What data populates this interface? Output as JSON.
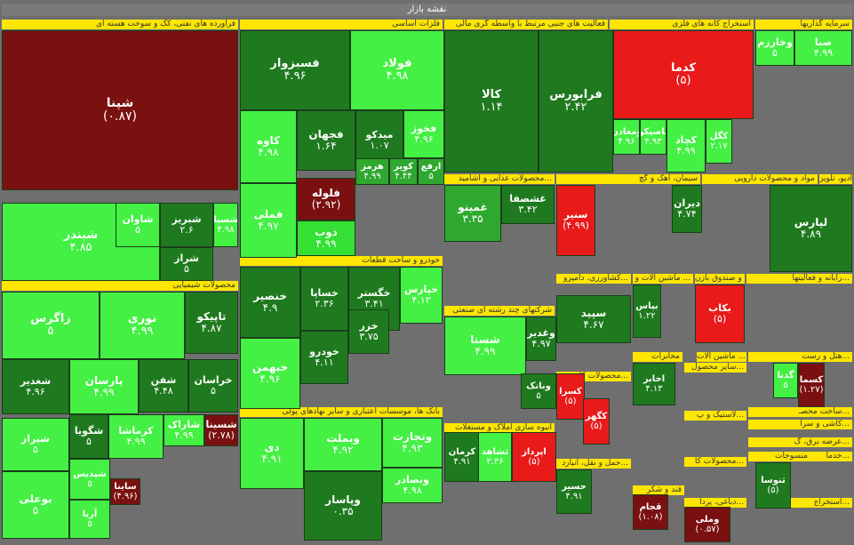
{
  "colors": {
    "dg": "#1f7a1f",
    "mg": "#2fa82f",
    "lg": "#33e033",
    "bg": "#44f044",
    "red": "#e81a1a",
    "dred": "#7a1010",
    "gray": "#6f6f6f",
    "yellow": "#ffe600"
  },
  "header": {
    "title": "نقشه بازار"
  },
  "chart_data": {
    "type": "treemap",
    "sectors": [
      {
        "id": "s1",
        "name": "فرآورده های نفتی، کک و سوخت هسته ای"
      },
      {
        "id": "s2",
        "name": "فلزات اساسی"
      },
      {
        "id": "s3",
        "name": "فعالیت های جنبی مرتبط با واسطه گری مالی"
      },
      {
        "id": "s4",
        "name": "استخراج کانه های فلزی"
      },
      {
        "id": "s5",
        "name": "سرمایه گذاریها"
      },
      {
        "id": "s6",
        "name": "محصولات غذایی و آشامید..."
      },
      {
        "id": "s7",
        "name": "سیمان، آهک و گچ"
      },
      {
        "id": "s8",
        "name": "مواد و محصولات دارویی"
      },
      {
        "id": "s9",
        "name": "ساخت رادیو، تلویز..."
      },
      {
        "id": "s10",
        "name": "خودرو و ساخت قطعات"
      },
      {
        "id": "s11",
        "name": "محصولات شیمیایی"
      },
      {
        "id": "s12",
        "name": "شرکتهای چند رشته ای صنعتی"
      },
      {
        "id": "s13",
        "name": "کشاورزی، دامپرو..."
      },
      {
        "id": "s14",
        "name": "ماشین آلات و ..."
      },
      {
        "id": "s15",
        "name": "بیمه و صندوق بازن..."
      },
      {
        "id": "s16",
        "name": "رایانه و فعالیتها..."
      },
      {
        "id": "s17",
        "name": "مخابرات"
      },
      {
        "id": "s18",
        "name": "ماشین آلات ..."
      },
      {
        "id": "s19",
        "name": "هتل و رست..."
      },
      {
        "id": "s20",
        "name": "سایر واسطه..."
      },
      {
        "id": "s21",
        "name": "محصولات کا..."
      },
      {
        "id": "s22",
        "name": "سایر محصول..."
      },
      {
        "id": "s23",
        "name": "ساخت محصـ..."
      },
      {
        "id": "s24",
        "name": "کاشی و سرا..."
      },
      {
        "id": "s25",
        "name": "لاستیک و پ..."
      },
      {
        "id": "s26",
        "name": "عرضه برق، گ..."
      },
      {
        "id": "s27",
        "name": "بانک ها، موسسات اعتباری و سایر نهادهای پولی"
      },
      {
        "id": "s28",
        "name": "انبوه سازی املاک و مستغلات"
      },
      {
        "id": "s29",
        "name": "حمل و نقل، انبارد..."
      },
      {
        "id": "s30",
        "name": "محصولات کا..."
      },
      {
        "id": "s31",
        "name": "قند و شکر"
      },
      {
        "id": "s32",
        "name": "منسوجات"
      },
      {
        "id": "s33",
        "name": "دباغی، پردا..."
      },
      {
        "id": "s34",
        "name": "خدما..."
      },
      {
        "id": "s35",
        "name": "استخراج..."
      }
    ],
    "tiles": [
      {
        "name": "شپنا",
        "value": "(۰.۸۷)"
      },
      {
        "name": "فسبزوار",
        "value": "۴.۹۶"
      },
      {
        "name": "فولاد",
        "value": "۴.۹۸"
      },
      {
        "name": "کالا",
        "value": "۱.۱۴"
      },
      {
        "name": "فرابورس",
        "value": "۲.۴۲"
      },
      {
        "name": "کدما",
        "value": "(۵)"
      },
      {
        "name": "صبا",
        "value": "۴.۹۹"
      },
      {
        "name": "وخارزم",
        "value": "۵"
      },
      {
        "name": "کاوه",
        "value": "۴.۹۸"
      },
      {
        "name": "فجهان",
        "value": "۱.۶۴"
      },
      {
        "name": "میدکو",
        "value": "۱.۰۷"
      },
      {
        "name": "فخوز",
        "value": "۴.۹۶"
      },
      {
        "name": "کچاد",
        "value": "۴.۹۹"
      },
      {
        "name": "کگل",
        "value": "۲.۱۷"
      },
      {
        "name": "هرمز",
        "value": "۴.۹۹"
      },
      {
        "name": "کویر",
        "value": "۴.۴۴"
      },
      {
        "name": "ارفع",
        "value": "۵"
      },
      {
        "name": "تاصیکو",
        "value": "۴.۹۳"
      },
      {
        "name": "ومعادن",
        "value": "۴.۹۶"
      },
      {
        "name": "فملی",
        "value": "۴.۹۷"
      },
      {
        "name": "فلوله",
        "value": "(۲.۹۲)"
      },
      {
        "name": "ذوب",
        "value": "۴.۹۹"
      },
      {
        "name": "شبندر",
        "value": "۴.۸۵"
      },
      {
        "name": "شاوان",
        "value": "۵"
      },
      {
        "name": "شبریز",
        "value": "۲.۶"
      },
      {
        "name": "شراز",
        "value": "۵"
      },
      {
        "name": "شسپا",
        "value": "۴.۹۸"
      },
      {
        "name": "غمینو",
        "value": "۳.۳۵"
      },
      {
        "name": "غشصفا",
        "value": "۳.۴۲"
      },
      {
        "name": "سنیر",
        "value": "(۴.۹۹)"
      },
      {
        "name": "دیران",
        "value": "۴.۷۴"
      },
      {
        "name": "لپارس",
        "value": "۴.۸۹"
      },
      {
        "name": "خنصیر",
        "value": "۴.۹"
      },
      {
        "name": "خساپا",
        "value": "۲.۳۶"
      },
      {
        "name": "خگستر",
        "value": "۳.۴۱"
      },
      {
        "name": "خپارس",
        "value": "۴.۱۳"
      },
      {
        "name": "خزر",
        "value": "۳.۷۵"
      },
      {
        "name": "خودرو",
        "value": "۴.۱۱"
      },
      {
        "name": "خبهمن",
        "value": "۴.۹۶"
      },
      {
        "name": "زاگرس",
        "value": "۵"
      },
      {
        "name": "نوری",
        "value": "۴.۹۹"
      },
      {
        "name": "تاپیکو",
        "value": "۴.۸۷"
      },
      {
        "name": "شغدیر",
        "value": "۴.۹۶"
      },
      {
        "name": "پارسان",
        "value": "۴.۹۹"
      },
      {
        "name": "شفن",
        "value": "۴.۴۸"
      },
      {
        "name": "خراسان",
        "value": "۵"
      },
      {
        "name": "شستا",
        "value": "۴.۹۹"
      },
      {
        "name": "وغدیر",
        "value": "۴.۹۷"
      },
      {
        "name": "سپید",
        "value": "۴.۶۷"
      },
      {
        "name": "بپاس",
        "value": "۱.۲۲"
      },
      {
        "name": "بکاب",
        "value": "(۵)"
      },
      {
        "name": "اخابر",
        "value": "۴.۱۳"
      },
      {
        "name": "وبانک",
        "value": "۵"
      },
      {
        "name": "کسرا",
        "value": "(۵)"
      },
      {
        "name": "کگهر",
        "value": "(۵)"
      },
      {
        "name": "شگویا",
        "value": "۵"
      },
      {
        "name": "کرماشا",
        "value": "۴.۹۹"
      },
      {
        "name": "شاراک",
        "value": "۴.۹۹"
      },
      {
        "name": "شسینا",
        "value": "(۲.۷۸)"
      },
      {
        "name": "شیراز",
        "value": "۵"
      },
      {
        "name": "بوعلی",
        "value": "۵"
      },
      {
        "name": "شپدیس",
        "value": "۵"
      },
      {
        "name": "آریا",
        "value": "۵"
      },
      {
        "name": "ساینا",
        "value": "(۴.۹۶)"
      },
      {
        "name": "دی",
        "value": "۴.۹۱"
      },
      {
        "name": "وبملت",
        "value": "۴.۹۲"
      },
      {
        "name": "وتجارت",
        "value": "۴.۹۳"
      },
      {
        "name": "وبصادر",
        "value": "۴.۹۸"
      },
      {
        "name": "وپاسار",
        "value": "۰.۳۵"
      },
      {
        "name": "کرمان",
        "value": "۴.۹۱"
      },
      {
        "name": "حسیر",
        "value": "۴.۹۱"
      },
      {
        "name": "قجام",
        "value": "(۱.۰۸)"
      },
      {
        "name": "وملی",
        "value": "(۰.۵۷)"
      },
      {
        "name": "کسما",
        "value": "(۱.۲۷)"
      },
      {
        "name": "گدنا",
        "value": "۵"
      },
      {
        "name": "ثشاهد",
        "value": "۳.۳۶"
      },
      {
        "name": "اپرداز",
        "value": "(۵)"
      },
      {
        "name": "ثنوسا",
        "value": "(۵)"
      }
    ]
  }
}
